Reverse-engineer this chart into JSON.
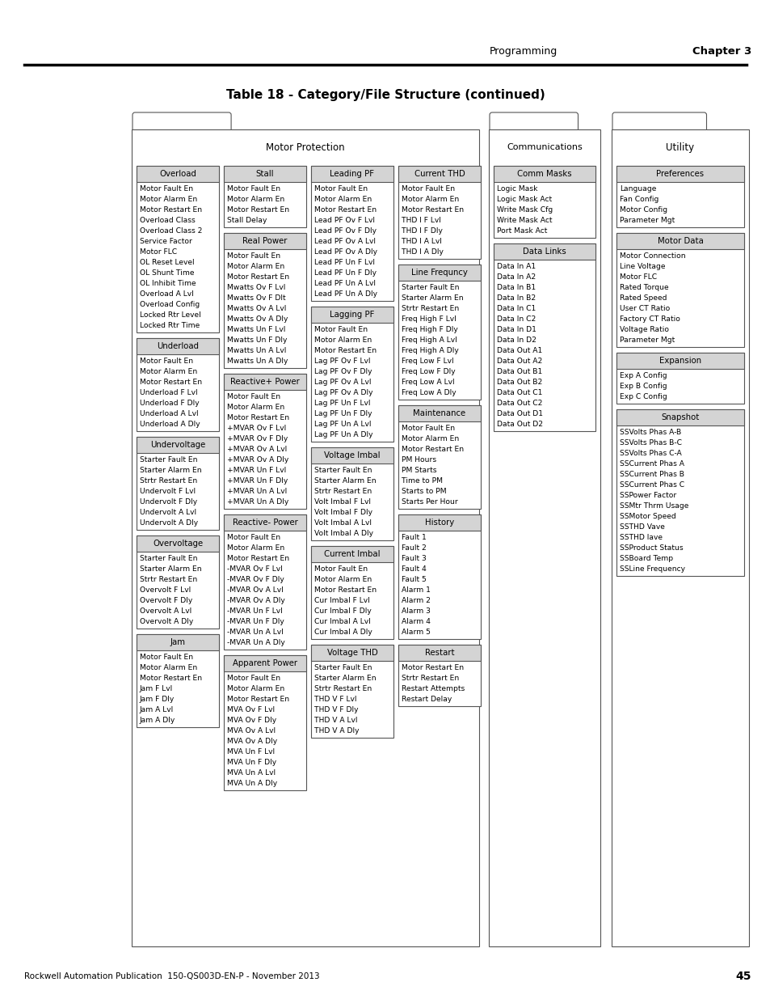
{
  "title": "Table 18 - Category/File Structure (continued)",
  "header_text": "Programming",
  "chapter_text": "Chapter 3",
  "footer_text": "Rockwell Automation Publication  150-QS003D-EN-P - November 2013",
  "page_num": "45",
  "bg_color": "#ffffff",
  "box_header_color": "#d4d4d4",
  "box_border_color": "#555555",
  "font_family": "DejaVu Sans",
  "col1_boxes": [
    {
      "header": "Overload",
      "items": [
        "Motor Fault En",
        "Motor Alarm En",
        "Motor Restart En",
        "Overload Class",
        "Overload Class 2",
        "Service Factor",
        "Motor FLC",
        "OL Reset Level",
        "OL Shunt Time",
        "OL Inhibit Time",
        "Overload A Lvl",
        "Overload Config",
        "Locked Rtr Level",
        "Locked Rtr Time"
      ]
    },
    {
      "header": "Underload",
      "items": [
        "Motor Fault En",
        "Motor Alarm En",
        "Motor Restart En",
        "Underload F Lvl",
        "Underload F Dly",
        "Underload A Lvl",
        "Underload A Dly"
      ]
    },
    {
      "header": "Undervoltage",
      "items": [
        "Starter Fault En",
        "Starter Alarm En",
        "Strtr Restart En",
        "Undervolt F Lvl",
        "Undervolt F Dly",
        "Undervolt A Lvl",
        "Undervolt A Dly"
      ]
    },
    {
      "header": "Overvoltage",
      "items": [
        "Starter Fault En",
        "Starter Alarm En",
        "Strtr Restart En",
        "Overvolt F Lvl",
        "Overvolt F Dly",
        "Overvolt A Lvl",
        "Overvolt A Dly"
      ]
    },
    {
      "header": "Jam",
      "items": [
        "Motor Fault En",
        "Motor Alarm En",
        "Motor Restart En",
        "Jam F Lvl",
        "Jam F Dly",
        "Jam A Lvl",
        "Jam A Dly"
      ]
    }
  ],
  "col2_boxes": [
    {
      "header": "Stall",
      "items": [
        "Motor Fault En",
        "Motor Alarm En",
        "Motor Restart En",
        "Stall Delay"
      ]
    },
    {
      "header": "Real Power",
      "items": [
        "Motor Fault En",
        "Motor Alarm En",
        "Motor Restart En",
        "Mwatts Ov F Lvl",
        "Mwatts Ov F Dlt",
        "Mwatts Ov A Lvl",
        "Mwatts Ov A Dly",
        "Mwatts Un F Lvl",
        "Mwatts Un F Dly",
        "Mwatts Un A Lvl",
        "Mwatts Un A Dly"
      ]
    },
    {
      "header": "Reactive+ Power",
      "items": [
        "Motor Fault En",
        "Motor Alarm En",
        "Motor Restart En",
        "+MVAR Ov F Lvl",
        "+MVAR Ov F Dly",
        "+MVAR Ov A Lvl",
        "+MVAR Ov A Dly",
        "+MVAR Un F Lvl",
        "+MVAR Un F Dly",
        "+MVAR Un A Lvl",
        "+MVAR Un A Dly"
      ]
    },
    {
      "header": "Reactive- Power",
      "items": [
        "Motor Fault En",
        "Motor Alarm En",
        "Motor Restart En",
        "-MVAR Ov F Lvl",
        "-MVAR Ov F Dly",
        "-MVAR Ov A Lvl",
        "-MVAR Ov A Dly",
        "-MVAR Un F Lvl",
        "-MVAR Un F Dly",
        "-MVAR Un A Lvl",
        "-MVAR Un A Dly"
      ]
    },
    {
      "header": "Apparent Power",
      "items": [
        "Motor Fault En",
        "Motor Alarm En",
        "Motor Restart En",
        "MVA Ov F Lvl",
        "MVA Ov F Dly",
        "MVA Ov A Lvl",
        "MVA Ov A Dly",
        "MVA Un F Lvl",
        "MVA Un F Dly",
        "MVA Un A Lvl",
        "MVA Un A Dly"
      ]
    }
  ],
  "col3_boxes": [
    {
      "header": "Leading PF",
      "items": [
        "Motor Fault En",
        "Motor Alarm En",
        "Motor Restart En",
        "Lead PF Ov F Lvl",
        "Lead PF Ov F Dly",
        "Lead PF Ov A Lvl",
        "Lead PF Ov A Dly",
        "Lead PF Un F Lvl",
        "Lead PF Un F Dly",
        "Lead PF Un A Lvl",
        "Lead PF Un A Dly"
      ]
    },
    {
      "header": "Lagging PF",
      "items": [
        "Motor Fault En",
        "Motor Alarm En",
        "Motor Restart En",
        "Lag PF Ov F Lvl",
        "Lag PF Ov F Dly",
        "Lag PF Ov A Lvl",
        "Lag PF Ov A Dly",
        "Lag PF Un F Lvl",
        "Lag PF Un F Dly",
        "Lag PF Un A Lvl",
        "Lag PF Un A Dly"
      ]
    },
    {
      "header": "Voltage Imbal",
      "items": [
        "Starter Fault En",
        "Starter Alarm En",
        "Strtr Restart En",
        "Volt Imbal F Lvl",
        "Volt Imbal F Dly",
        "Volt Imbal A Lvl",
        "Volt Imbal A Dly"
      ]
    },
    {
      "header": "Current Imbal",
      "items": [
        "Motor Fault En",
        "Motor Alarm En",
        "Motor Restart En",
        "Cur Imbal F Lvl",
        "Cur Imbal F Dly",
        "Cur Imbal A Lvl",
        "Cur Imbal A Dly"
      ]
    },
    {
      "header": "Voltage THD",
      "items": [
        "Starter Fault En",
        "Starter Alarm En",
        "Strtr Restart En",
        "THD V F Lvl",
        "THD V F Dly",
        "THD V A Lvl",
        "THD V A Dly"
      ]
    }
  ],
  "col4_boxes": [
    {
      "header": "Current THD",
      "items": [
        "Motor Fault En",
        "Motor Alarm En",
        "Motor Restart En",
        "THD I F Lvl",
        "THD I F Dly",
        "THD I A Lvl",
        "THD I A Dly"
      ]
    },
    {
      "header": "Line Frequncy",
      "items": [
        "Starter Fault En",
        "Starter Alarm En",
        "Strtr Restart En",
        "Freq High F Lvl",
        "Freq High F Dly",
        "Freq High A Lvl",
        "Freq High A Dly",
        "Freq Low F Lvl",
        "Freq Low F Dly",
        "Freq Low A Lvl",
        "Freq Low A Dly"
      ]
    },
    {
      "header": "Maintenance",
      "items": [
        "Motor Fault En",
        "Motor Alarm En",
        "Motor Restart En",
        "PM Hours",
        "PM Starts",
        "Time to PM",
        "Starts to PM",
        "Starts Per Hour"
      ]
    },
    {
      "header": "History",
      "items": [
        "Fault 1",
        "Fault 2",
        "Fault 3",
        "Fault 4",
        "Fault 5",
        "Alarm 1",
        "Alarm 2",
        "Alarm 3",
        "Alarm 4",
        "Alarm 5"
      ]
    },
    {
      "header": "Restart",
      "items": [
        "Motor Restart En",
        "Strtr Restart En",
        "Restart Attempts",
        "Restart Delay"
      ]
    }
  ],
  "comm_boxes": [
    {
      "header": "Comm Masks",
      "items": [
        "Logic Mask",
        "Logic Mask Act",
        "Write Mask Cfg",
        "Write Mask Act",
        "Port Mask Act"
      ]
    },
    {
      "header": "Data Links",
      "items": [
        "Data In A1",
        "Data In A2",
        "Data In B1",
        "Data In B2",
        "Data In C1",
        "Data In C2",
        "Data In D1",
        "Data In D2",
        "Data Out A1",
        "Data Out A2",
        "Data Out B1",
        "Data Out B2",
        "Data Out C1",
        "Data Out C2",
        "Data Out D1",
        "Data Out D2"
      ]
    }
  ],
  "util_boxes": [
    {
      "header": "Preferences",
      "items": [
        "Language",
        "Fan Config",
        "Motor Config",
        "Parameter Mgt"
      ]
    },
    {
      "header": "Motor Data",
      "items": [
        "Motor Connection",
        "Line Voltage",
        "Motor FLC",
        "Rated Torque",
        "Rated Speed",
        "User CT Ratio",
        "Factory CT Ratio",
        "Voltage Ratio",
        "Parameter Mgt"
      ]
    },
    {
      "header": "Expansion",
      "items": [
        "Exp A Config",
        "Exp B Config",
        "Exp C Config"
      ]
    },
    {
      "header": "Snapshot",
      "items": [
        "SSVolts Phas A-B",
        "SSVolts Phas B-C",
        "SSVolts Phas C-A",
        "SSCurrent Phas A",
        "SSCurrent Phas B",
        "SSCurrent Phas C",
        "SSPower Factor",
        "SSMtr Thrm Usage",
        "SSMotor Speed",
        "SSTHD Vave",
        "SSTHD Iave",
        "SSProduct Status",
        "SSBoard Temp",
        "SSLine Frequency"
      ]
    }
  ]
}
